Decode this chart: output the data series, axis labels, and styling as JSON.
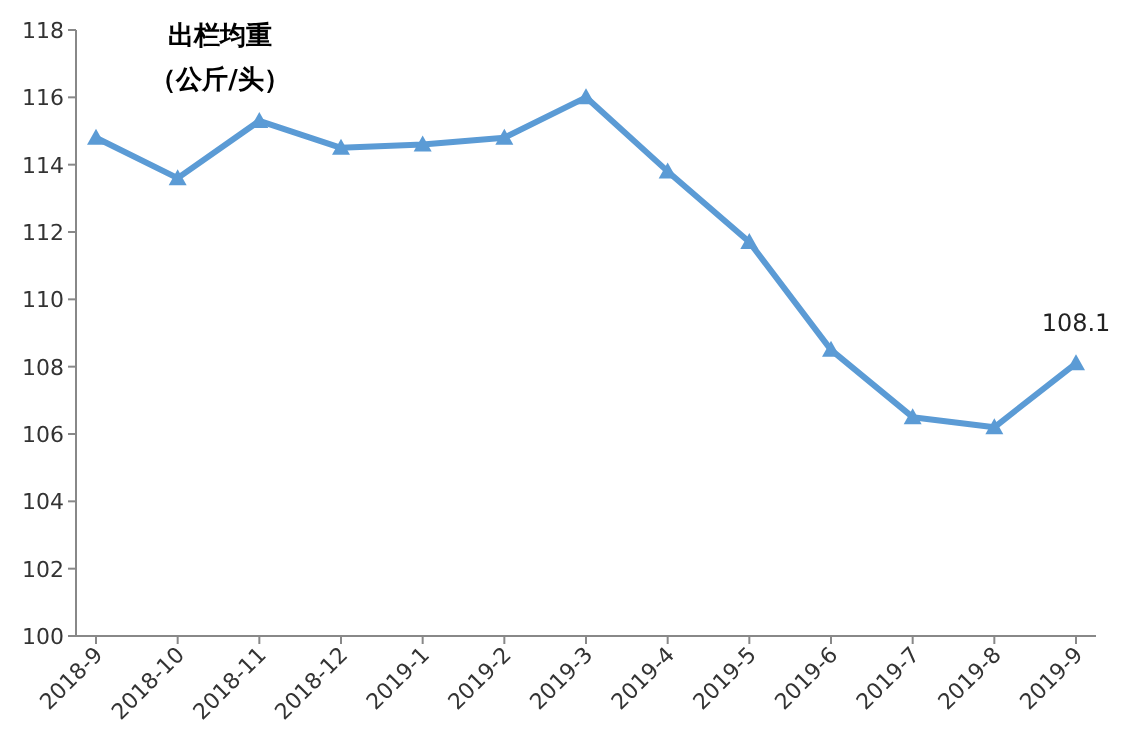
{
  "chart_data": {
    "type": "line",
    "title": "出栏均重",
    "subtitle": "（公斤/头）",
    "categories": [
      "2018-9",
      "2018-10",
      "2018-11",
      "2018-12",
      "2019-1",
      "2019-2",
      "2019-3",
      "2019-4",
      "2019-5",
      "2019-6",
      "2019-7",
      "2019-8",
      "2019-9"
    ],
    "values": [
      114.8,
      113.6,
      115.3,
      114.5,
      114.6,
      114.8,
      116.0,
      113.8,
      111.7,
      108.5,
      106.5,
      106.2,
      108.1
    ],
    "value_labels": [
      null,
      null,
      null,
      null,
      null,
      null,
      null,
      null,
      null,
      null,
      null,
      null,
      "108.1"
    ],
    "color": "#5b9bd5",
    "marker": "triangle",
    "line_style": "solid",
    "ylim": [
      100,
      118
    ],
    "yticks": [
      100,
      102,
      104,
      106,
      108,
      110,
      112,
      114,
      116,
      118
    ]
  }
}
